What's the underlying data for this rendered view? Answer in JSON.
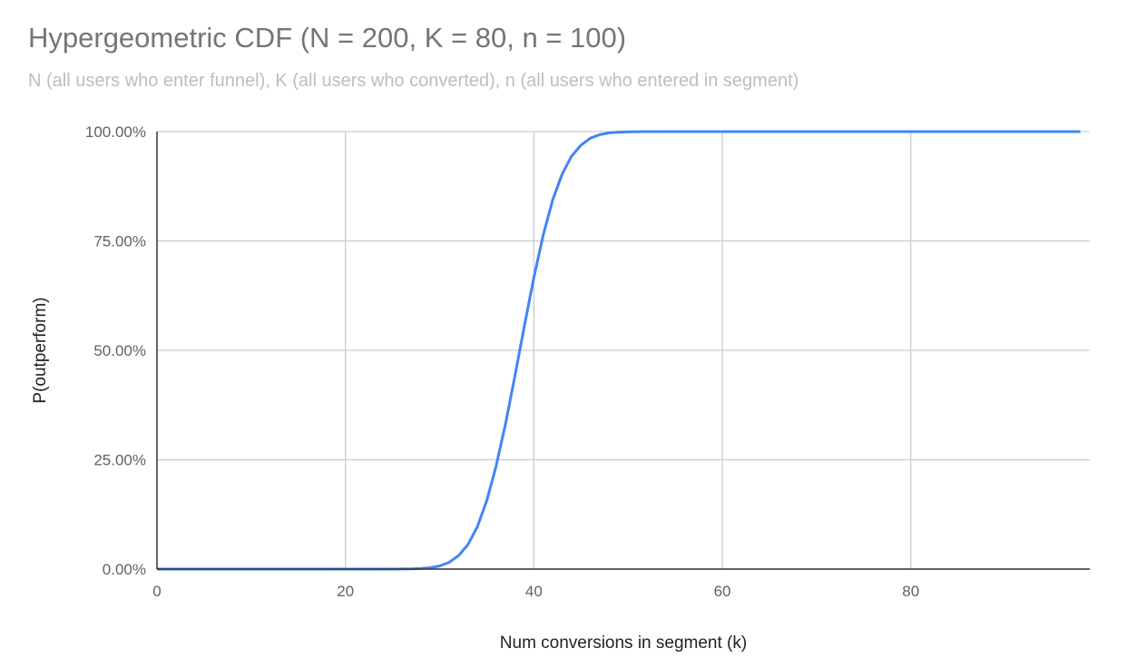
{
  "chart_data": {
    "type": "line",
    "title": "Hypergeometric CDF (N = 200, K = 80, n = 100)",
    "subtitle": "N (all users who enter funnel), K (all users who converted), n (all users who entered in segment)",
    "xlabel": "Num conversions in segment (k)",
    "ylabel": "P(outperform)",
    "xlim": [
      0,
      99
    ],
    "ylim": [
      0,
      1
    ],
    "x_ticks": [
      0,
      20,
      40,
      60,
      80
    ],
    "x_tick_labels": [
      "0",
      "20",
      "40",
      "60",
      "80"
    ],
    "y_ticks": [
      0,
      0.25,
      0.5,
      0.75,
      1
    ],
    "y_tick_labels": [
      "0.00%",
      "25.00%",
      "50.00%",
      "75.00%",
      "100.00%"
    ],
    "grid": true,
    "legend": "none",
    "line_color": "#4285f4",
    "x": [
      0,
      1,
      2,
      3,
      4,
      5,
      6,
      7,
      8,
      9,
      10,
      11,
      12,
      13,
      14,
      15,
      16,
      17,
      18,
      19,
      20,
      21,
      22,
      23,
      24,
      25,
      26,
      27,
      28,
      29,
      30,
      31,
      32,
      33,
      34,
      35,
      36,
      37,
      38,
      39,
      40,
      41,
      42,
      43,
      44,
      45,
      46,
      47,
      48,
      49,
      50,
      51,
      52,
      53,
      54,
      55,
      56,
      57,
      58,
      59,
      60,
      61,
      62,
      63,
      64,
      65,
      66,
      67,
      68,
      69,
      70,
      71,
      72,
      73,
      74,
      75,
      76,
      77,
      78,
      79,
      80,
      81,
      82,
      83,
      84,
      85,
      86,
      87,
      88,
      89,
      90,
      91,
      92,
      93,
      94,
      95,
      96,
      97,
      98
    ],
    "y": [
      0,
      0,
      0,
      0,
      0,
      0,
      0,
      0,
      0,
      0,
      0,
      0,
      0,
      0,
      0,
      0,
      0,
      0,
      0,
      0,
      0,
      0,
      0,
      0,
      0,
      5e-05,
      0.00016,
      0.0005,
      0.0012,
      0.0031,
      0.0071,
      0.0154,
      0.0307,
      0.0559,
      0.0968,
      0.156,
      0.236,
      0.333,
      0.443,
      0.557,
      0.667,
      0.764,
      0.844,
      0.903,
      0.944,
      0.969,
      0.985,
      0.993,
      0.997,
      0.9988,
      0.9995,
      0.9998,
      1,
      1,
      1,
      1,
      1,
      1,
      1,
      1,
      1,
      1,
      1,
      1,
      1,
      1,
      1,
      1,
      1,
      1,
      1,
      1,
      1,
      1,
      1,
      1,
      1,
      1,
      1,
      1,
      1,
      1,
      1,
      1,
      1,
      1,
      1,
      1,
      1,
      1,
      1,
      1,
      1,
      1,
      1,
      1,
      1,
      1,
      1
    ]
  }
}
